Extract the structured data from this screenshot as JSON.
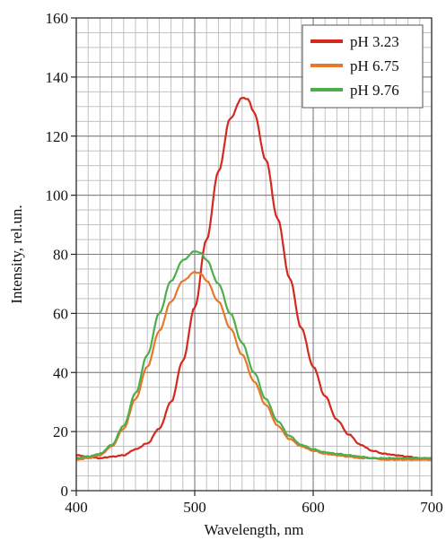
{
  "chart_data": {
    "type": "line",
    "title": "",
    "xlabel": "Wavelength, nm",
    "ylabel": "Intensity, rel.un.",
    "xlim": [
      400,
      700
    ],
    "ylim": [
      0,
      160
    ],
    "x_ticks": [
      "400",
      "500",
      "600",
      "700"
    ],
    "y_ticks": [
      "0",
      "20",
      "40",
      "60",
      "80",
      "100",
      "120",
      "140",
      "160"
    ],
    "x_minor_step": 10,
    "y_minor_step": 5,
    "grid": true,
    "legend_position": "top-right",
    "series": [
      {
        "name": "pH 3.23",
        "color": "#d42a1e",
        "x": [
          400,
          410,
          420,
          430,
          440,
          450,
          460,
          470,
          480,
          490,
          500,
          510,
          520,
          530,
          540,
          545,
          550,
          560,
          570,
          580,
          590,
          600,
          610,
          620,
          630,
          640,
          650,
          660,
          670,
          680,
          690,
          700
        ],
        "y": [
          12,
          11.5,
          11,
          11.5,
          12,
          14,
          16,
          21,
          30,
          44,
          62,
          85,
          108,
          126,
          133,
          132.5,
          128,
          112,
          92,
          72,
          55,
          42,
          32,
          24,
          19,
          15.5,
          13.5,
          12.5,
          12,
          11.5,
          11,
          11
        ]
      },
      {
        "name": "pH 6.75",
        "color": "#e8772a",
        "x": [
          400,
          410,
          420,
          430,
          440,
          450,
          460,
          470,
          480,
          490,
          500,
          505,
          510,
          520,
          530,
          540,
          550,
          560,
          570,
          580,
          590,
          600,
          610,
          620,
          630,
          640,
          650,
          660,
          670,
          680,
          690,
          700
        ],
        "y": [
          10.5,
          11,
          12,
          15,
          21,
          31,
          42,
          54,
          64,
          71,
          74,
          73.5,
          71,
          64,
          55,
          46,
          37,
          29,
          22,
          17.5,
          15,
          13.5,
          12.5,
          12,
          11.5,
          11,
          11,
          10.5,
          10.5,
          10.5,
          10.5,
          10.5
        ]
      },
      {
        "name": "pH 9.76",
        "color": "#4cae4c",
        "x": [
          400,
          410,
          420,
          430,
          440,
          450,
          460,
          470,
          480,
          490,
          500,
          505,
          510,
          520,
          530,
          540,
          550,
          560,
          570,
          580,
          590,
          600,
          610,
          620,
          630,
          640,
          650,
          660,
          670,
          680,
          690,
          700
        ],
        "y": [
          11,
          11.5,
          12.5,
          15.5,
          22,
          33,
          46,
          60,
          71,
          78,
          81,
          80.5,
          78,
          70,
          60,
          50,
          40,
          31,
          23.5,
          18.5,
          15.5,
          14,
          13,
          12.5,
          12,
          11.5,
          11,
          11,
          11,
          11,
          11,
          11
        ]
      }
    ]
  }
}
